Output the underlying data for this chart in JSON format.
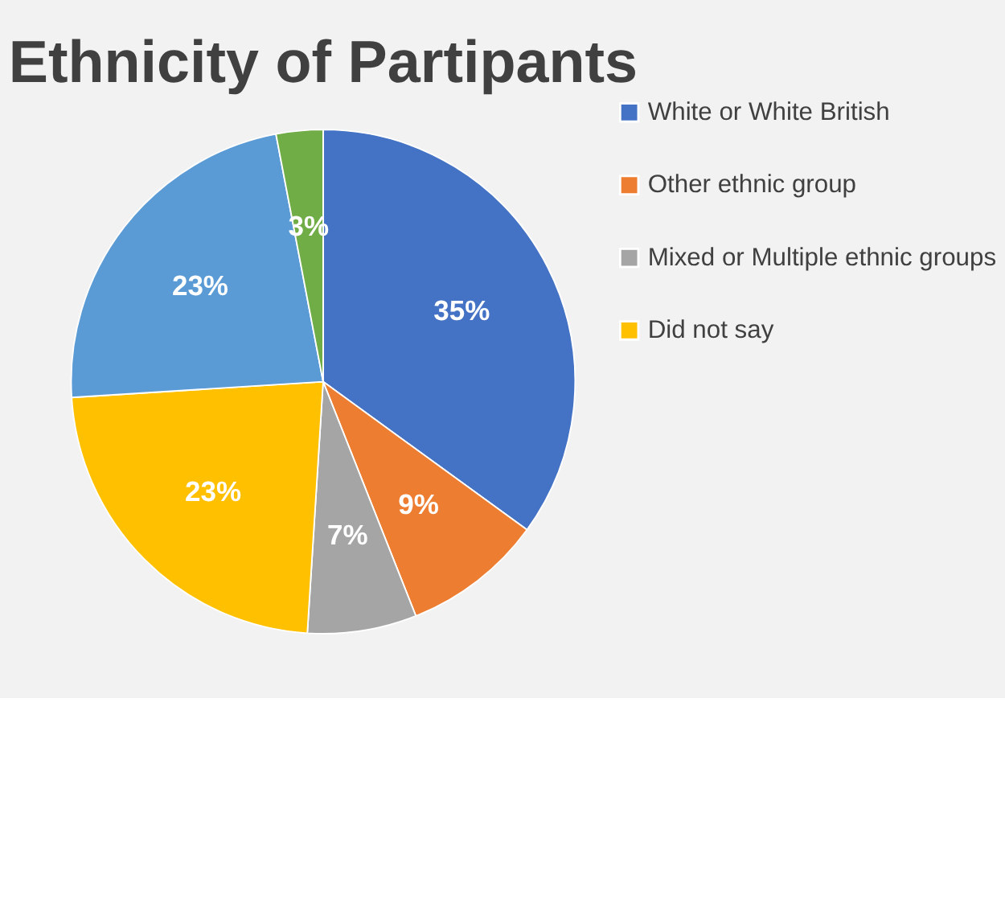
{
  "chart_data": {
    "type": "pie",
    "title": "Ethnicity of Partipants",
    "categories": [
      "White or White British",
      "Other ethnic group",
      "Mixed or Multiple ethnic groups",
      "Did not say",
      null,
      null
    ],
    "values": [
      35,
      9,
      7,
      23,
      23,
      3
    ],
    "value_labels": [
      "35%",
      "9%",
      "7%",
      "23%",
      "23%",
      "3%"
    ],
    "colors": [
      "#4472c4",
      "#ed7d31",
      "#a5a5a5",
      "#ffc000",
      "#5b9bd5",
      "#70ad47"
    ],
    "legend": "right"
  }
}
